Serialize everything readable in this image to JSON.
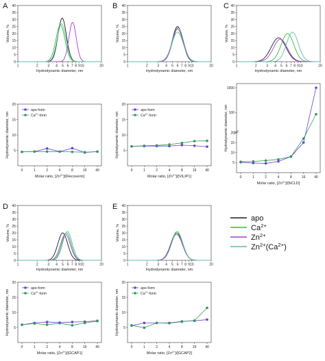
{
  "colors": {
    "apo": "#1a1a1a",
    "ca": "#2fbf2f",
    "zn": "#a23cd6",
    "znca": "#5fb9a8",
    "apo_form_marker": "#6a3fd0",
    "ca_form_marker": "#2f9a5a"
  },
  "figure_legend": {
    "apo": "apo",
    "ca": "Ca",
    "ca_sup": "2+",
    "zn": "Zn",
    "zn_sup": "2+",
    "znca": "Zn",
    "znca_sup": "2+",
    "znca_paren": "(Ca",
    "znca_paren_sup": "2+",
    "znca_close": ")"
  },
  "panel_labels": [
    "A",
    "B",
    "C",
    "D",
    "E"
  ],
  "small_legend": {
    "apo_form": "apo-form",
    "ca_form_prefix": "Ca",
    "ca_form_sup": "2+",
    "ca_form_suffix": "-form"
  },
  "xlabel_prefix": "Molar ratio, [Zn",
  "xlabel_sup": "2+",
  "chart_data": [
    {
      "panel": "A",
      "type": "line",
      "xlabel": "Hydrodynamic diameter, nm",
      "ylabel": "Volume, %",
      "xscale": "log",
      "xlim": [
        1,
        20
      ],
      "ylim": [
        0,
        40
      ],
      "xticks": [
        "1",
        "2",
        "3",
        "4",
        "5",
        "6",
        "7",
        "8",
        "9",
        "10",
        "20"
      ],
      "yticks": [
        0,
        5,
        10,
        15,
        20,
        25,
        30,
        35,
        40
      ],
      "series": [
        {
          "key": "apo",
          "peak_x": 4.9,
          "peak_y": 31,
          "width": 0.24
        },
        {
          "key": "ca",
          "peak_x": 4.6,
          "peak_y": 26,
          "width": 0.26
        },
        {
          "key": "zn",
          "peak_x": 7.1,
          "peak_y": 28,
          "width": 0.21
        },
        {
          "key": "znca",
          "peak_x": 4.8,
          "peak_y": 27,
          "width": 0.25
        }
      ]
    },
    {
      "panel": "B",
      "type": "line",
      "xlabel": "Hydrodynamic diameter, nm",
      "ylabel": "Volume, %",
      "xscale": "log",
      "xlim": [
        1,
        20
      ],
      "ylim": [
        0,
        40
      ],
      "xticks": [
        "1",
        "2",
        "3",
        "4",
        "5",
        "6",
        "7",
        "8",
        "9",
        "10",
        "20"
      ],
      "yticks": [
        0,
        5,
        10,
        15,
        20,
        25,
        30,
        35,
        40
      ],
      "series": [
        {
          "key": "apo",
          "peak_x": 6.0,
          "peak_y": 25,
          "width": 0.3
        },
        {
          "key": "ca",
          "peak_x": 6.0,
          "peak_y": 23,
          "width": 0.32
        },
        {
          "key": "zn",
          "peak_x": 6.1,
          "peak_y": 24,
          "width": 0.31
        },
        {
          "key": "znca",
          "peak_x": 6.0,
          "peak_y": 21,
          "width": 0.33
        }
      ]
    },
    {
      "panel": "C",
      "type": "line",
      "xlabel": "Hydrodynamic diameter, nm",
      "ylabel": "Volume, %",
      "xscale": "log",
      "xlim": [
        1,
        20
      ],
      "ylim": [
        0,
        40
      ],
      "xticks": [
        "1",
        "2",
        "3",
        "4",
        "5",
        "6",
        "7",
        "8",
        "9",
        "10",
        "20"
      ],
      "yticks": [
        0,
        5,
        10,
        15,
        20,
        25,
        30,
        35,
        40
      ],
      "series": [
        {
          "key": "apo",
          "peak_x": 4.5,
          "peak_y": 17,
          "width": 0.42
        },
        {
          "key": "ca",
          "peak_x": 6.2,
          "peak_y": 20,
          "width": 0.36
        },
        {
          "key": "zn",
          "peak_x": 4.8,
          "peak_y": 16,
          "width": 0.4
        },
        {
          "key": "znca",
          "peak_x": 7.4,
          "peak_y": 21,
          "width": 0.34
        }
      ]
    },
    {
      "panel": "D",
      "type": "line",
      "xlabel": "Hydrodynamic diameter, nm",
      "ylabel": "Volume, %",
      "xscale": "log",
      "xlim": [
        1,
        20
      ],
      "ylim": [
        0,
        40
      ],
      "xticks": [
        "1",
        "2",
        "3",
        "4",
        "5",
        "6",
        "7",
        "8",
        "9",
        "10",
        "20"
      ],
      "yticks": [
        0,
        5,
        10,
        15,
        20,
        25,
        30,
        35,
        40
      ],
      "series": [
        {
          "key": "apo",
          "peak_x": 5.0,
          "peak_y": 20,
          "width": 0.28
        },
        {
          "key": "ca",
          "peak_x": 5.7,
          "peak_y": 20,
          "width": 0.27
        },
        {
          "key": "zn",
          "peak_x": 5.5,
          "peak_y": 19,
          "width": 0.28
        },
        {
          "key": "znca",
          "peak_x": 5.9,
          "peak_y": 21,
          "width": 0.27
        }
      ]
    },
    {
      "panel": "E",
      "type": "line",
      "xlabel": "Hydrodynamic diameter, nm",
      "ylabel": "Volume, %",
      "xscale": "log",
      "xlim": [
        1,
        20
      ],
      "ylim": [
        0,
        40
      ],
      "xticks": [
        "1",
        "2",
        "3",
        "4",
        "5",
        "6",
        "7",
        "8",
        "9",
        "10",
        "20"
      ],
      "yticks": [
        0,
        5,
        10,
        15,
        20,
        25,
        30,
        35,
        40
      ],
      "series": [
        {
          "key": "apo",
          "peak_x": 5.8,
          "peak_y": 20,
          "width": 0.33
        },
        {
          "key": "ca",
          "peak_x": 5.9,
          "peak_y": 21,
          "width": 0.32
        },
        {
          "key": "zn",
          "peak_x": 5.8,
          "peak_y": 19,
          "width": 0.33
        },
        {
          "key": "znca",
          "peak_x": 5.9,
          "peak_y": 20,
          "width": 0.32
        }
      ]
    },
    {
      "panel": "A-bottom",
      "type": "line",
      "xlabel_suffix": "]/[Recoverin]",
      "ylabel": "Hydrodynamic diameter, nm",
      "categories": [
        "0",
        "1",
        "2",
        "4",
        "8",
        "16",
        "40"
      ],
      "ylim": [
        0,
        20
      ],
      "yticks": [
        5,
        10,
        15,
        20
      ],
      "series": [
        {
          "key": "apo_form",
          "values": [
            4.5,
            4.6,
            5.6,
            4.6,
            5.7,
            4.3,
            4.6
          ]
        },
        {
          "key": "ca_form",
          "values": [
            4.5,
            4.6,
            4.6,
            4.6,
            4.5,
            4.4,
            4.6
          ]
        }
      ]
    },
    {
      "panel": "B-bottom",
      "type": "line",
      "xlabel_suffix": "]/[VILIP1]",
      "ylabel": "Hydrodynamic diameter, nm",
      "categories": [
        "0",
        "1",
        "2",
        "4",
        "8",
        "16",
        "40"
      ],
      "ylim": [
        0,
        20
      ],
      "yticks": [
        5,
        10,
        15,
        20
      ],
      "series": [
        {
          "key": "apo_form",
          "values": [
            6.3,
            6.4,
            6.4,
            6.4,
            6.7,
            6.5,
            6.2
          ]
        },
        {
          "key": "ca_form",
          "values": [
            6.3,
            6.5,
            6.6,
            6.9,
            7.4,
            8.0,
            8.1
          ]
        }
      ]
    },
    {
      "panel": "C-bottom",
      "type": "line",
      "xlabel_suffix": "]/[NCLD]",
      "ylabel": "Hydrodynamic diameter, nm",
      "categories": [
        "0",
        "1",
        "2",
        "4",
        "8",
        "16",
        "40"
      ],
      "yscale": "broken",
      "ytick_labels": [
        "5",
        "10",
        "15",
        "20",
        "100",
        "1000"
      ],
      "series": [
        {
          "key": "apo_form",
          "values": [
            5.2,
            4.8,
            4.6,
            5.6,
            8,
            15,
            1000
          ]
        },
        {
          "key": "ca_form",
          "values": [
            5.4,
            5.6,
            6.0,
            6.6,
            8,
            17,
            85
          ]
        }
      ]
    },
    {
      "panel": "D-bottom",
      "type": "line",
      "xlabel_suffix": "]/[GCAP1]",
      "ylabel": "Hydrodynamic diameter, nm",
      "categories": [
        "0",
        "1",
        "2",
        "4",
        "8",
        "16",
        "40"
      ],
      "ylim": [
        0,
        20
      ],
      "yticks": [
        5,
        10,
        15,
        20
      ],
      "series": [
        {
          "key": "apo_form",
          "values": [
            5.9,
            6.5,
            6.8,
            6.6,
            6.8,
            6.9,
            7.2
          ]
        },
        {
          "key": "ca_form",
          "values": [
            5.9,
            6.3,
            5.9,
            6.4,
            5.7,
            6.5,
            7.1
          ]
        }
      ]
    },
    {
      "panel": "E-bottom",
      "type": "line",
      "xlabel_suffix": "]/[GCAP2]",
      "ylabel": "Hydrodynamic diameter, nm",
      "categories": [
        "0",
        "1",
        "2",
        "4",
        "8",
        "16",
        "40"
      ],
      "ylim": [
        0,
        20
      ],
      "yticks": [
        5,
        10,
        15,
        20
      ],
      "series": [
        {
          "key": "apo_form",
          "values": [
            5.6,
            6.5,
            6.5,
            6.5,
            7.0,
            7.2,
            7.6
          ]
        },
        {
          "key": "ca_form",
          "values": [
            5.7,
            4.9,
            6.5,
            6.4,
            6.9,
            7.3,
            11.5
          ]
        }
      ]
    }
  ]
}
